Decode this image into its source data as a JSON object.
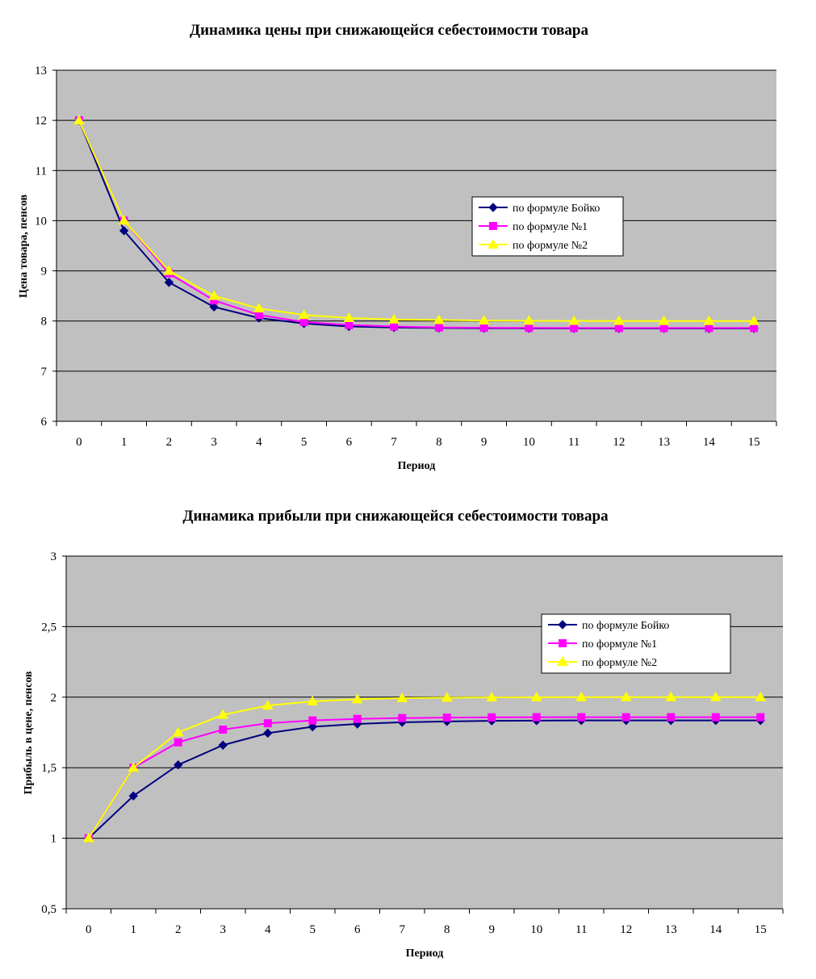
{
  "colors": {
    "plot_background": "#c0c0c0",
    "gridline": "#000000",
    "series_boyko": "#000080",
    "series_f1": "#ff00ff",
    "series_f2": "#ffff00"
  },
  "chart_data": [
    {
      "type": "line",
      "title": "Динамика цены при снижающейся себестоимости товара",
      "xlabel": "Период",
      "ylabel": "Цена товара, пенсов",
      "x": [
        0,
        1,
        2,
        3,
        4,
        5,
        6,
        7,
        8,
        9,
        10,
        11,
        12,
        13,
        14,
        15
      ],
      "x_tick_labels": [
        "0",
        "1",
        "2",
        "3",
        "4",
        "5",
        "6",
        "7",
        "8",
        "9",
        "10",
        "11",
        "12",
        "13",
        "14",
        "15"
      ],
      "ylim": [
        6,
        13
      ],
      "y_tick_labels": [
        "13",
        "12",
        "11",
        "10",
        "9",
        "8",
        "7",
        "6"
      ],
      "grid": true,
      "legend_position": "right",
      "series": [
        {
          "name": "по формуле Бойко",
          "marker": "diamond",
          "values": [
            12,
            9.8,
            8.77,
            8.28,
            8.06,
            7.95,
            7.89,
            7.87,
            7.86,
            7.855,
            7.853,
            7.852,
            7.851,
            7.851,
            7.85,
            7.85
          ]
        },
        {
          "name": "по формуле №1",
          "marker": "square",
          "values": [
            12,
            10,
            8.95,
            8.41,
            8.12,
            7.98,
            7.92,
            7.89,
            7.87,
            7.865,
            7.862,
            7.86,
            7.86,
            7.86,
            7.86,
            7.86
          ]
        },
        {
          "name": "по формуле №2",
          "marker": "triangle",
          "values": [
            12,
            10,
            9.0,
            8.5,
            8.25,
            8.12,
            8.06,
            8.03,
            8.02,
            8.01,
            8.005,
            8.002,
            8.001,
            8.0,
            8.0,
            8.0
          ]
        }
      ]
    },
    {
      "type": "line",
      "title": "Динамика прибыли при снижающейся себестоимости товара",
      "xlabel": "Период",
      "ylabel": "Прибыль в цене, пенсов",
      "x": [
        0,
        1,
        2,
        3,
        4,
        5,
        6,
        7,
        8,
        9,
        10,
        11,
        12,
        13,
        14,
        15
      ],
      "x_tick_labels": [
        "0",
        "1",
        "2",
        "3",
        "4",
        "5",
        "6",
        "7",
        "8",
        "9",
        "10",
        "11",
        "12",
        "13",
        "14",
        "15"
      ],
      "ylim": [
        0.5,
        3
      ],
      "y_tick_labels": [
        "3",
        "2,5",
        "2",
        "1,5",
        "1",
        "0,5"
      ],
      "grid": true,
      "legend_position": "right",
      "series": [
        {
          "name": "по формуле Бойко",
          "marker": "diamond",
          "values": [
            1,
            1.3,
            1.52,
            1.66,
            1.745,
            1.79,
            1.81,
            1.822,
            1.828,
            1.832,
            1.834,
            1.835,
            1.835,
            1.835,
            1.835,
            1.835
          ]
        },
        {
          "name": "по формуле №1",
          "marker": "square",
          "values": [
            1,
            1.5,
            1.68,
            1.77,
            1.815,
            1.835,
            1.846,
            1.852,
            1.855,
            1.857,
            1.858,
            1.858,
            1.858,
            1.858,
            1.858,
            1.858
          ]
        },
        {
          "name": "по формуле №2",
          "marker": "triangle",
          "values": [
            1,
            1.5,
            1.75,
            1.875,
            1.94,
            1.97,
            1.985,
            1.993,
            1.996,
            1.998,
            1.999,
            2.0,
            2.0,
            2.0,
            2.0,
            2.0
          ]
        }
      ]
    }
  ]
}
